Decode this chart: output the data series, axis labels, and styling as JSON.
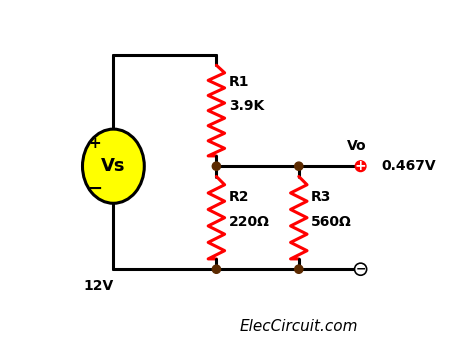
{
  "bg_color": "#ffffff",
  "wire_color": "#000000",
  "resistor_color": "#ff0000",
  "dot_color": "#5c2a00",
  "source_fill": "#ffff00",
  "source_border": "#000000",
  "output_dot_color": "#ff0000",
  "gnd_dot_color": "#000000",
  "text_color": "#000000",
  "label_eleccircuit": "ElecCircuit.com",
  "source_label": "Vs",
  "source_plus": "+",
  "source_minus": "−",
  "source_voltage": "12V",
  "r1_label": "R1",
  "r1_value": "3.9K",
  "r2_label": "R2",
  "r2_value": "220Ω",
  "r3_label": "R3",
  "r3_value": "560Ω",
  "vo_label": "Vo",
  "vo_value": "0.467V",
  "figsize": [
    4.74,
    3.53
  ],
  "dpi": 100
}
